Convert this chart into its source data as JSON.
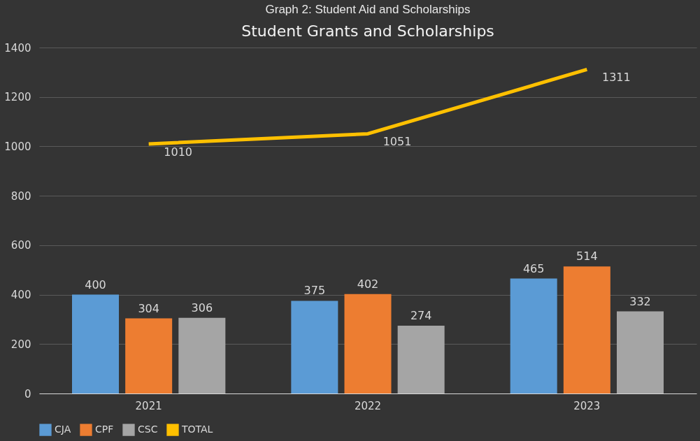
{
  "chart_data": {
    "type": "bar",
    "title": "Graph 2: Student Aid and Scholarships",
    "subtitle": "Student Grants and Scholarships",
    "categories": [
      "2021",
      "2022",
      "2023"
    ],
    "series": [
      {
        "name": "CJA",
        "color": "#5b9bd5",
        "values": [
          400,
          375,
          465
        ]
      },
      {
        "name": "CPF",
        "color": "#ed7d31",
        "values": [
          304,
          402,
          514
        ]
      },
      {
        "name": "CSC",
        "color": "#a5a5a5",
        "values": [
          306,
          274,
          332
        ]
      },
      {
        "name": "TOTAL",
        "type": "line",
        "color": "#ffc000",
        "values": [
          1010,
          1051,
          1311
        ]
      }
    ],
    "ylim": [
      0,
      1400
    ],
    "yticks": [
      0,
      200,
      400,
      600,
      800,
      1000,
      1200,
      1400
    ],
    "grid": "y",
    "legend": "bottom",
    "data_labels": true
  }
}
